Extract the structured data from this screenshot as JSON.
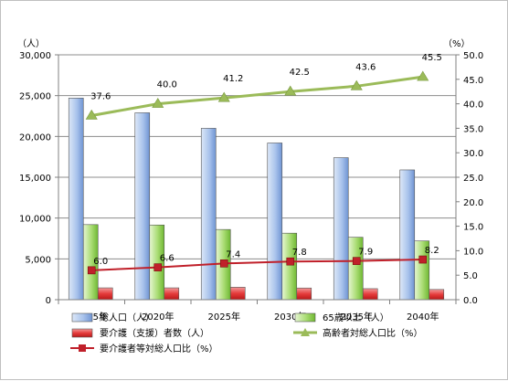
{
  "chart_data": {
    "type": "bar",
    "categories": [
      "2015年",
      "2020年",
      "2025年",
      "2030年",
      "2035年",
      "2040年"
    ],
    "left_unit": "（人）",
    "right_unit": "（%）",
    "y_left": {
      "min": 0,
      "max": 30000,
      "ticks": [
        "0",
        "5,000",
        "10,000",
        "15,000",
        "20,000",
        "25,000",
        "30,000"
      ],
      "tick_values": [
        0,
        5000,
        10000,
        15000,
        20000,
        25000,
        30000
      ]
    },
    "y_right": {
      "min": 0,
      "max": 50,
      "ticks": [
        "0.0",
        "5.0",
        "10.0",
        "15.0",
        "20.0",
        "25.0",
        "30.0",
        "35.0",
        "40.0",
        "45.0",
        "50.0"
      ],
      "tick_values": [
        0,
        5,
        10,
        15,
        20,
        25,
        30,
        35,
        40,
        45,
        50
      ]
    },
    "grid": true,
    "legend_position": "bottom",
    "series": [
      {
        "name": "総人口（人）",
        "kind": "bar",
        "axis": "left",
        "color": "#8fb0e3",
        "values": [
          24700,
          22900,
          21000,
          19200,
          17400,
          15900
        ]
      },
      {
        "name": "65歳以上（人）",
        "kind": "bar",
        "axis": "left",
        "color": "#9fd66b",
        "values": [
          9200,
          9150,
          8600,
          8150,
          7650,
          7200
        ]
      },
      {
        "name": "要介護（支援）者数（人）",
        "kind": "bar",
        "axis": "left",
        "color": "#e85050",
        "values": [
          1450,
          1450,
          1530,
          1430,
          1350,
          1250
        ]
      },
      {
        "name": "高齢者対総人口比（%）",
        "kind": "line",
        "axis": "right",
        "color": "#9bbb59",
        "values": [
          37.6,
          40.0,
          41.2,
          42.5,
          43.6,
          45.5
        ],
        "labels": [
          "37.6",
          "40.0",
          "41.2",
          "42.5",
          "43.6",
          "45.5"
        ]
      },
      {
        "name": "要介護者等対総人口比（%）",
        "kind": "line",
        "axis": "right",
        "color": "#c0202a",
        "values": [
          6.0,
          6.6,
          7.4,
          7.8,
          7.9,
          8.2
        ],
        "labels": [
          "6.0",
          "6.6",
          "7.4",
          "7.8",
          "7.9",
          "8.2"
        ]
      }
    ]
  }
}
